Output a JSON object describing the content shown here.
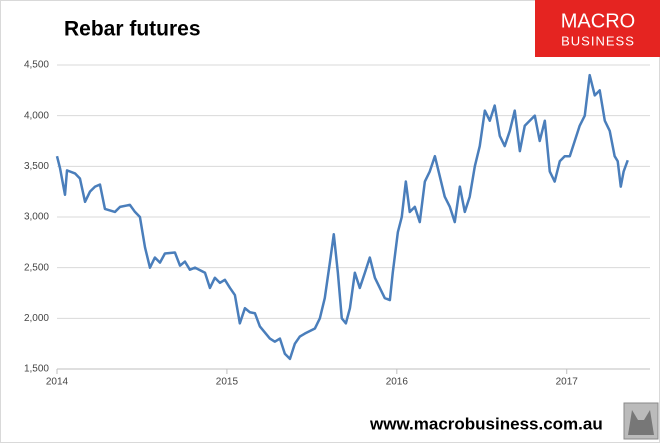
{
  "chart_data": {
    "type": "line",
    "title": "Rebar futures",
    "logo": [
      "MACRO",
      "BUSINESS"
    ],
    "footer": "www.macrobusiness.com.au",
    "color": "#4a7ebb",
    "x": [
      2014.0,
      2014.018,
      2014.047,
      2014.059,
      2014.106,
      2014.135,
      2014.165,
      2014.194,
      2014.224,
      2014.253,
      2014.282,
      2014.341,
      2014.371,
      2014.429,
      2014.459,
      2014.488,
      2014.518,
      2014.547,
      2014.576,
      2014.606,
      2014.635,
      2014.694,
      2014.724,
      2014.753,
      2014.782,
      2014.812,
      2014.871,
      2014.9,
      2014.929,
      2014.959,
      2014.988,
      2015.018,
      2015.047,
      2015.076,
      2015.106,
      2015.135,
      2015.165,
      2015.194,
      2015.253,
      2015.282,
      2015.312,
      2015.341,
      2015.371,
      2015.4,
      2015.429,
      2015.459,
      2015.518,
      2015.547,
      2015.576,
      2015.606,
      2015.629,
      2015.653,
      2015.676,
      2015.7,
      2015.724,
      2015.753,
      2015.782,
      2015.812,
      2015.841,
      2015.871,
      2015.9,
      2015.929,
      2015.959,
      2015.976,
      2016.006,
      2016.029,
      2016.053,
      2016.076,
      2016.106,
      2016.135,
      2016.165,
      2016.194,
      2016.224,
      2016.253,
      2016.282,
      2016.312,
      2016.341,
      2016.371,
      2016.4,
      2016.429,
      2016.459,
      2016.488,
      2016.518,
      2016.547,
      2016.576,
      2016.606,
      2016.635,
      2016.665,
      2016.694,
      2016.724,
      2016.753,
      2016.782,
      2016.812,
      2016.841,
      2016.871,
      2016.9,
      2016.929,
      2016.959,
      2016.988,
      2017.018,
      2017.047,
      2017.076,
      2017.106,
      2017.135,
      2017.165,
      2017.194,
      2017.224,
      2017.253,
      2017.282,
      2017.3,
      2017.318,
      2017.335,
      2017.359
    ],
    "values": [
      3600,
      3480,
      3220,
      3460,
      3430,
      3380,
      3150,
      3250,
      3300,
      3320,
      3080,
      3050,
      3100,
      3120,
      3050,
      3000,
      2700,
      2500,
      2600,
      2550,
      2640,
      2650,
      2520,
      2560,
      2480,
      2500,
      2450,
      2300,
      2400,
      2350,
      2380,
      2300,
      2230,
      1950,
      2100,
      2060,
      2050,
      1920,
      1800,
      1770,
      1800,
      1650,
      1600,
      1750,
      1820,
      1850,
      1900,
      2000,
      2200,
      2550,
      2830,
      2450,
      2000,
      1950,
      2100,
      2450,
      2300,
      2450,
      2600,
      2400,
      2300,
      2200,
      2180,
      2450,
      2850,
      3000,
      3350,
      3050,
      3100,
      2950,
      3350,
      3450,
      3600,
      3400,
      3200,
      3100,
      2950,
      3300,
      3050,
      3200,
      3500,
      3700,
      4050,
      3950,
      4100,
      3800,
      3700,
      3850,
      4050,
      3650,
      3900,
      3950,
      4000,
      3750,
      3950,
      3450,
      3350,
      3550,
      3600,
      3600,
      3750,
      3900,
      4000,
      4400,
      4200,
      4250,
      3950,
      3850,
      3600,
      3550,
      3300,
      3450,
      3560
    ],
    "xlim": [
      2014,
      2017.49
    ],
    "xticks": [
      2014,
      2015,
      2016,
      2017
    ],
    "ylim": [
      1500,
      4500
    ],
    "yticks": [
      {
        "value": 1500,
        "label": "1,500"
      },
      {
        "value": 2000,
        "label": "2,000"
      },
      {
        "value": 2500,
        "label": "2,500"
      },
      {
        "value": 3000,
        "label": "3,000"
      },
      {
        "value": 3500,
        "label": "3,500"
      },
      {
        "value": 4000,
        "label": "4,000"
      },
      {
        "value": 4500,
        "label": "4,500"
      }
    ],
    "grid": true
  }
}
